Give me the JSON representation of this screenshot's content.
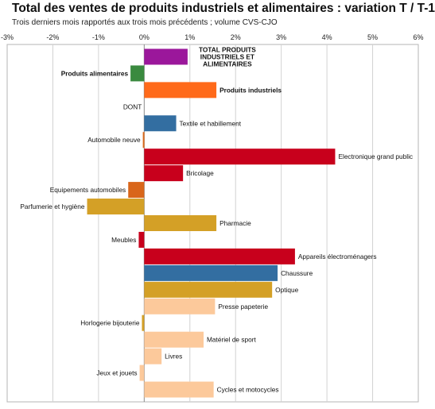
{
  "header": {
    "title": "Total des ventes de produits industriels et alimentaires : variation T / T-1",
    "subtitle": "Trois derniers mois rapportés aux trois mois précédents ; volume CVS-CJO"
  },
  "chart_data": {
    "type": "bar",
    "orientation": "horizontal",
    "title": "Total des ventes de produits industriels et alimentaires : variation T / T-1",
    "subtitle": "Trois derniers mois rapportés aux trois mois précédents ; volume CVS-CJO",
    "xlim": [
      -3,
      6
    ],
    "x_ticks": [
      "-3%",
      "-2%",
      "-1%",
      "0%",
      "1%",
      "2%",
      "3%",
      "4%",
      "5%",
      "6%"
    ],
    "grid": true,
    "categories": [
      {
        "label": "TOTAL PRODUITS INDUSTRIELS ET ALIMENTAIRES",
        "lines": [
          "TOTAL PRODUITS",
          "INDUSTRIELS ET",
          "ALIMENTAIRES"
        ],
        "value": 0.95,
        "color": "#9b179b",
        "bold": true,
        "side": "right"
      },
      {
        "label": "Produits alimentaires",
        "value": -0.3,
        "color": "#3a8a3f",
        "bold": true,
        "side": "left"
      },
      {
        "label": "Produits industriels",
        "value": 1.58,
        "color": "#ff6a1a",
        "bold": true,
        "side": "right"
      },
      {
        "label": "DONT",
        "value": 0,
        "color": "#ffffff",
        "bold": false,
        "side": "left"
      },
      {
        "label": "Textile et habillement",
        "value": 0.7,
        "color": "#336ea1",
        "bold": false,
        "side": "right"
      },
      {
        "label": "Automobile neuve",
        "value": -0.03,
        "color": "#d96a1c",
        "bold": false,
        "side": "left"
      },
      {
        "label": "Electronique grand public",
        "value": 4.18,
        "color": "#c8001c",
        "bold": false,
        "side": "right"
      },
      {
        "label": "Bricolage",
        "value": 0.85,
        "color": "#c8001c",
        "bold": false,
        "side": "right"
      },
      {
        "label": "Equipements automobiles",
        "value": -0.35,
        "color": "#d9661a",
        "bold": false,
        "side": "left"
      },
      {
        "label": "Parfumerie et hygiène",
        "value": -1.25,
        "color": "#d4a026",
        "bold": false,
        "side": "left"
      },
      {
        "label": "Pharmacie",
        "value": 1.58,
        "color": "#d4a026",
        "bold": false,
        "side": "right"
      },
      {
        "label": "Meubles",
        "value": -0.12,
        "color": "#c8001c",
        "bold": false,
        "side": "left"
      },
      {
        "label": "Appareils électroménagers",
        "value": 3.3,
        "color": "#c8001c",
        "bold": false,
        "side": "right"
      },
      {
        "label": "Chaussure",
        "value": 2.92,
        "color": "#336ea1",
        "bold": false,
        "side": "right"
      },
      {
        "label": "Optique",
        "value": 2.8,
        "color": "#d4a026",
        "bold": false,
        "side": "right"
      },
      {
        "label": "Presse papeterie",
        "value": 1.55,
        "color": "#fcc99b",
        "bold": false,
        "side": "right"
      },
      {
        "label": "Horlogerie bijouterie",
        "value": -0.05,
        "color": "#d4a026",
        "bold": false,
        "side": "left"
      },
      {
        "label": "Matériel de sport",
        "value": 1.3,
        "color": "#fcc99b",
        "bold": false,
        "side": "right"
      },
      {
        "label": "Livres",
        "value": 0.38,
        "color": "#fcc99b",
        "bold": false,
        "side": "right"
      },
      {
        "label": "Jeux et jouets",
        "value": -0.1,
        "color": "#fcc99b",
        "bold": false,
        "side": "left"
      },
      {
        "label": "Cycles et motocycles",
        "value": 1.52,
        "color": "#fcc99b",
        "bold": false,
        "side": "right"
      }
    ]
  }
}
